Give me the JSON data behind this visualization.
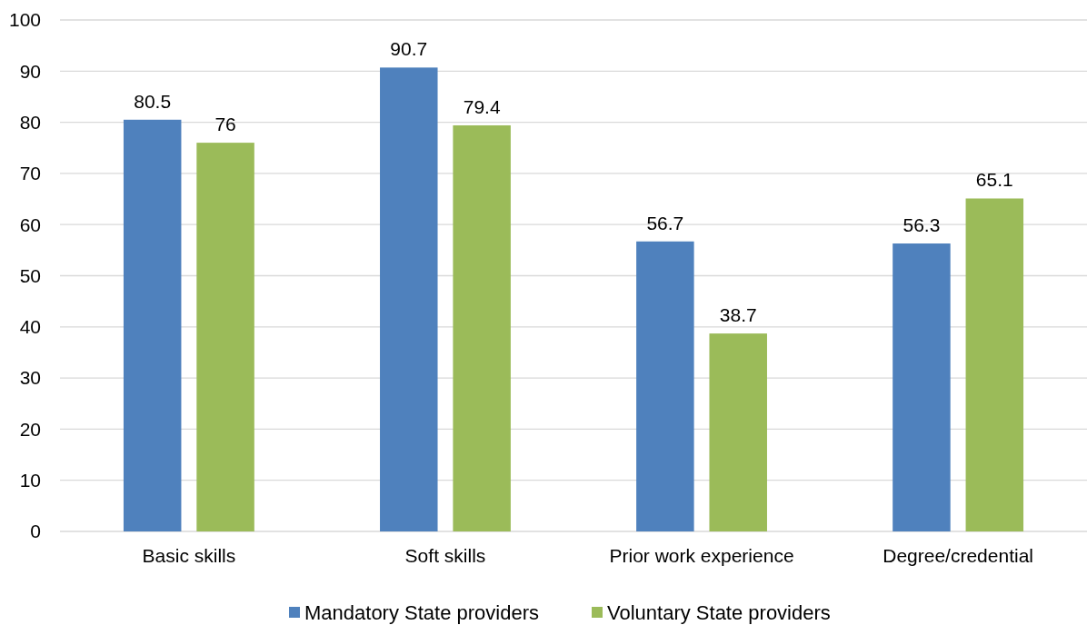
{
  "chart_data": {
    "type": "bar",
    "categories": [
      "Basic skills",
      "Soft skills",
      "Prior work experience",
      "Degree/credential"
    ],
    "series": [
      {
        "name": "Mandatory State providers",
        "color": "#4f81bd",
        "values": [
          80.5,
          90.7,
          56.7,
          56.3
        ]
      },
      {
        "name": "Voluntary State providers",
        "color": "#9bbb59",
        "values": [
          76,
          79.4,
          38.7,
          65.1
        ]
      }
    ],
    "ylim": [
      0,
      100
    ],
    "yticks": [
      0,
      10,
      20,
      30,
      40,
      50,
      60,
      70,
      80,
      90,
      100
    ],
    "grid": "y",
    "legend": "bottom",
    "data_labels": true
  }
}
